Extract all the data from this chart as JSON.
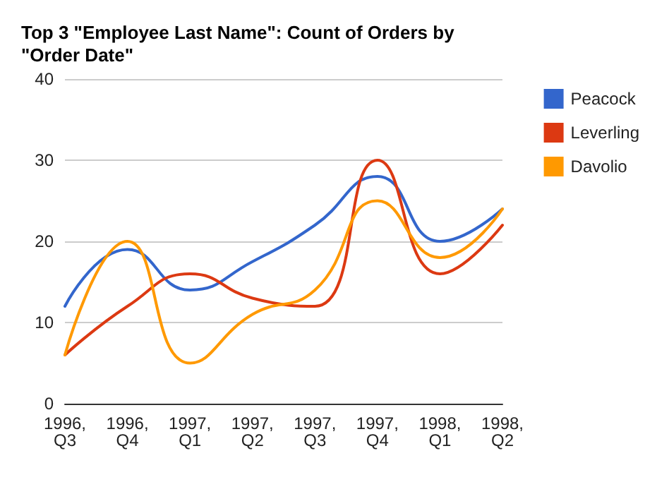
{
  "chart_data": {
    "type": "line",
    "title": "Top 3 \"Employee Last Name\": Count of Orders by \"Order Date\"",
    "categories": [
      "1996, Q3",
      "1996, Q4",
      "1997, Q1",
      "1997, Q2",
      "1997, Q3",
      "1997, Q4",
      "1998, Q1",
      "1998, Q2"
    ],
    "series": [
      {
        "name": "Peacock",
        "color": "#3366cc",
        "values": [
          12,
          19,
          14,
          17.5,
          22,
          28,
          20,
          24
        ]
      },
      {
        "name": "Leverling",
        "color": "#dc3912",
        "values": [
          6,
          12,
          16,
          13,
          12,
          30,
          16,
          22
        ]
      },
      {
        "name": "Davolio",
        "color": "#ff9900",
        "values": [
          6,
          20,
          5,
          11,
          14,
          25,
          18,
          24
        ]
      }
    ],
    "ylim": [
      0,
      40
    ],
    "yticks": [
      0,
      10,
      20,
      30,
      40
    ],
    "grid": "y",
    "legend": "right",
    "marker": "none",
    "line_style": "solid"
  }
}
